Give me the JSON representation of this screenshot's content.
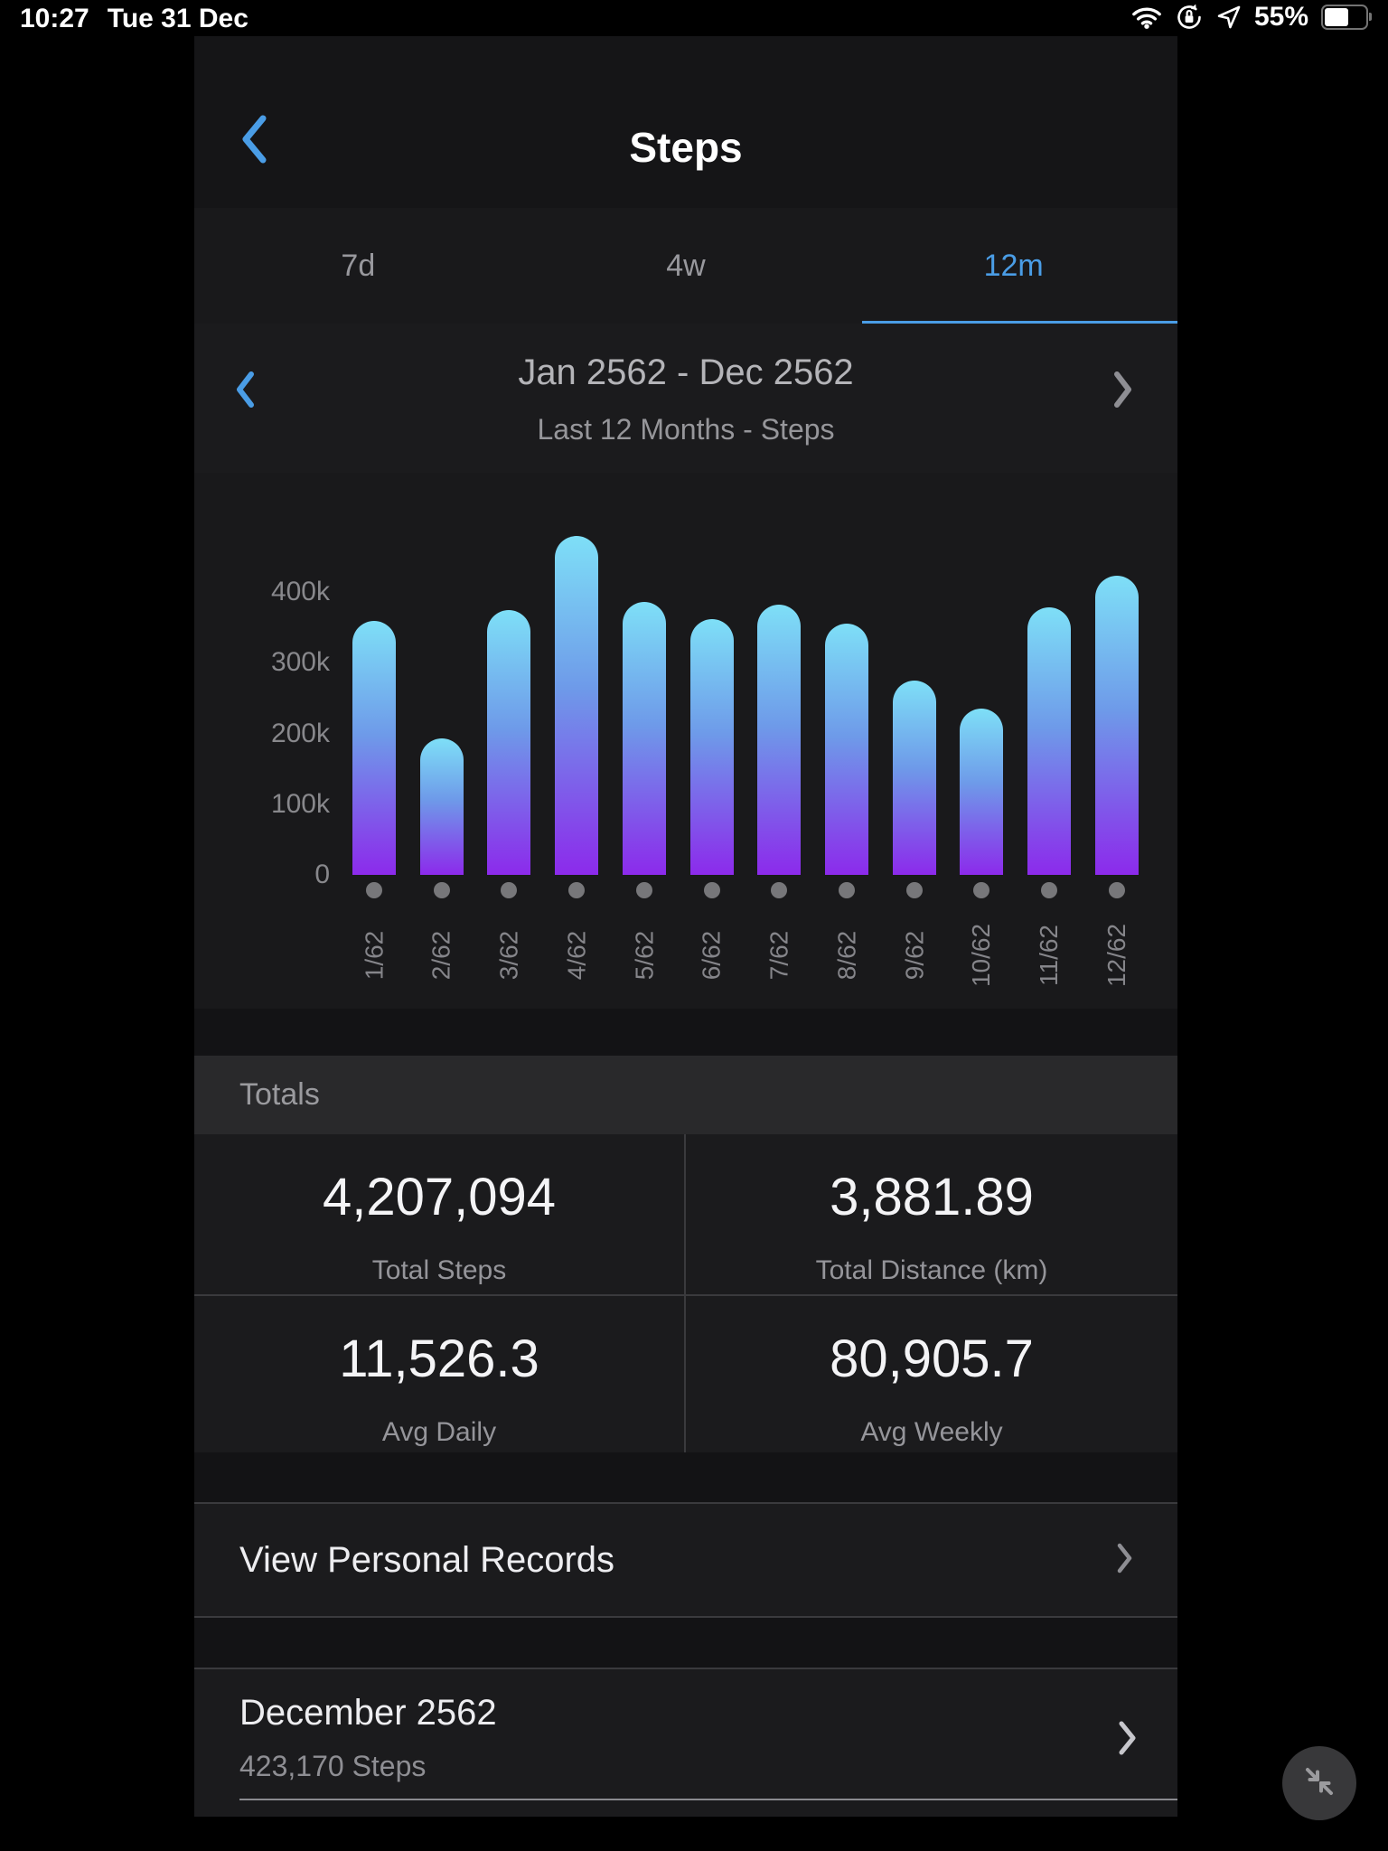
{
  "status_bar": {
    "time": "10:27",
    "date": "Tue 31 Dec",
    "battery_label": "55%",
    "battery_percent": 55,
    "icons": [
      "wifi-icon",
      "orientation-lock-icon",
      "location-arrow-icon",
      "battery-icon"
    ]
  },
  "header": {
    "title": "Steps",
    "back_icon": "chevron-left-icon"
  },
  "tabs": [
    {
      "label": "7d",
      "active": false
    },
    {
      "label": "4w",
      "active": false
    },
    {
      "label": "12m",
      "active": true
    }
  ],
  "date_nav": {
    "range": "Jan 2562 - Dec 2562",
    "subtitle": "Last 12 Months - Steps"
  },
  "chart_data": {
    "type": "bar",
    "title": "Last 12 Months - Steps",
    "categories": [
      "1/62",
      "2/62",
      "3/62",
      "4/62",
      "5/62",
      "6/62",
      "7/62",
      "8/62",
      "9/62",
      "10/62",
      "11/62",
      "12/62"
    ],
    "values": [
      359000,
      193000,
      375000,
      479000,
      386000,
      362000,
      382000,
      355000,
      275000,
      235000,
      378000,
      423170
    ],
    "y_ticks": [
      {
        "label": "400k",
        "value": 400000
      },
      {
        "label": "300k",
        "value": 300000
      },
      {
        "label": "200k",
        "value": 200000
      },
      {
        "label": "100k",
        "value": 100000
      },
      {
        "label": "0",
        "value": 0
      }
    ],
    "ylim": [
      0,
      480000
    ],
    "grid": false,
    "legend": null,
    "bar_gradient": [
      "#7edff7",
      "#8c2aeb"
    ],
    "dot_color": "#77777a"
  },
  "totals": {
    "section_title": "Totals",
    "stats": [
      {
        "value": "4,207,094",
        "label": "Total Steps"
      },
      {
        "value": "3,881.89",
        "label": "Total Distance (km)"
      },
      {
        "value": "11,526.3",
        "label": "Avg Daily"
      },
      {
        "value": "80,905.7",
        "label": "Avg Weekly"
      }
    ]
  },
  "links": {
    "personal_records": "View Personal Records"
  },
  "month_summary": {
    "title": "December 2562",
    "subtitle": "423,170 Steps"
  },
  "colors": {
    "accent": "#4a9de6",
    "panel_bg": "#19191b",
    "totals_band": "#29292b"
  }
}
